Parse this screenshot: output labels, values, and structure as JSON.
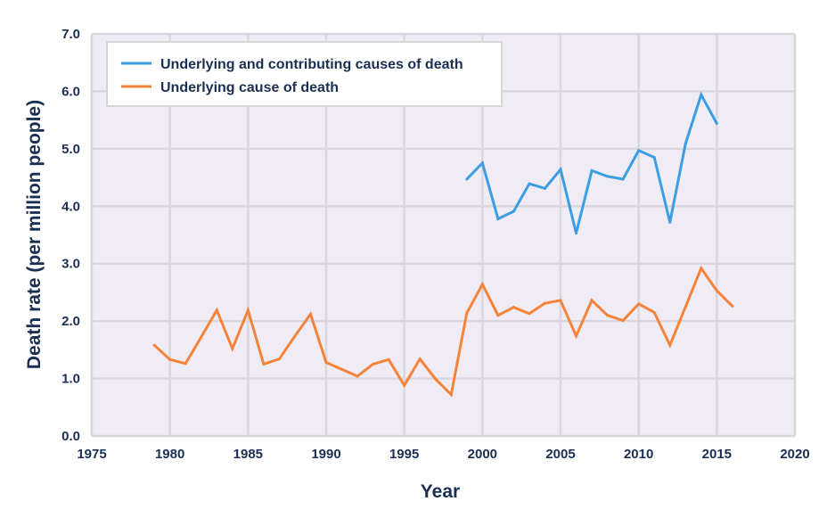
{
  "chart_data": {
    "type": "line",
    "title": "",
    "xlabel": "Year",
    "ylabel": "Death rate (per million people)",
    "xlim": [
      1975,
      2020
    ],
    "ylim": [
      0,
      7
    ],
    "x_ticks": [
      "1975",
      "1980",
      "1985",
      "1990",
      "1995",
      "2000",
      "2005",
      "2010",
      "2015",
      "2020"
    ],
    "y_ticks": [
      "0.0",
      "1.0",
      "2.0",
      "3.0",
      "4.0",
      "5.0",
      "6.0",
      "7.0"
    ],
    "grid": true,
    "legend_position": "top-left",
    "series": [
      {
        "name": "Underlying and contributing causes of death",
        "color": "#3d9de3",
        "x": [
          1999,
          2000,
          2001,
          2002,
          2003,
          2004,
          2005,
          2006,
          2007,
          2008,
          2009,
          2010,
          2011,
          2012,
          2013,
          2014,
          2015
        ],
        "values": [
          4.47,
          4.75,
          3.78,
          3.91,
          4.39,
          4.31,
          4.64,
          3.53,
          4.62,
          4.52,
          4.47,
          4.97,
          4.85,
          3.72,
          5.09,
          5.94,
          5.44
        ]
      },
      {
        "name": "Underlying cause of death",
        "color": "#f5843a",
        "x": [
          1979,
          1980,
          1981,
          1982,
          1983,
          1984,
          1985,
          1986,
          1987,
          1988,
          1989,
          1990,
          1991,
          1992,
          1993,
          1994,
          1995,
          1996,
          1997,
          1998,
          1999,
          2000,
          2001,
          2002,
          2003,
          2004,
          2005,
          2006,
          2007,
          2008,
          2009,
          2010,
          2011,
          2012,
          2013,
          2014,
          2015,
          2016
        ],
        "values": [
          1.58,
          1.33,
          1.26,
          1.72,
          2.19,
          1.52,
          2.19,
          1.25,
          1.34,
          1.74,
          2.12,
          1.28,
          1.16,
          1.04,
          1.25,
          1.33,
          0.88,
          1.34,
          0.99,
          0.72,
          2.14,
          2.64,
          2.1,
          2.24,
          2.13,
          2.31,
          2.36,
          1.74,
          2.36,
          2.1,
          2.01,
          2.3,
          2.15,
          1.58,
          2.25,
          2.92,
          2.53,
          2.26
        ]
      }
    ]
  }
}
